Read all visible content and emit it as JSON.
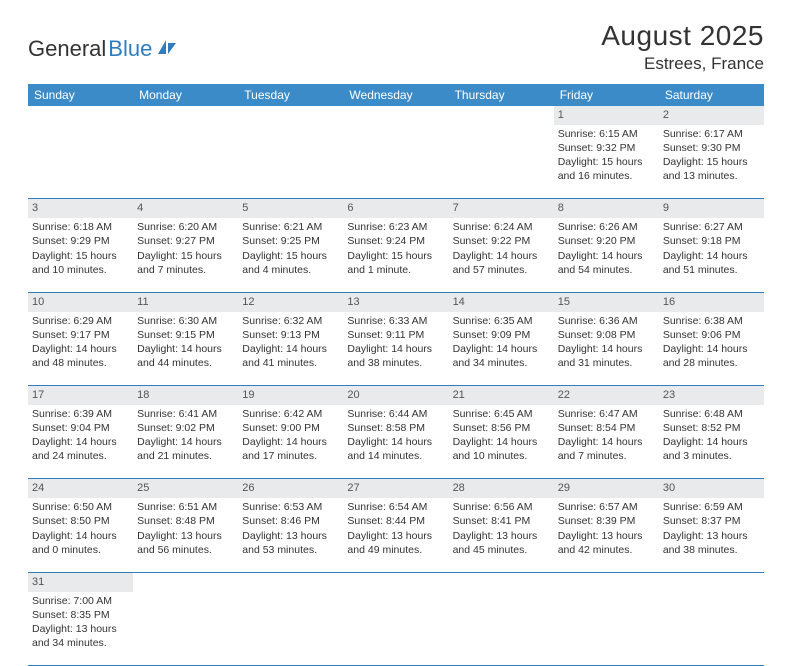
{
  "logo": {
    "text_dark": "General",
    "text_blue": "Blue"
  },
  "title": "August 2025",
  "location": "Estrees, France",
  "colors": {
    "header_bg": "#3b8bc9",
    "header_text": "#ffffff",
    "daynum_bg": "#e9eaeb",
    "row_divider": "#2f7dbf",
    "text": "#333333"
  },
  "weekdays": [
    "Sunday",
    "Monday",
    "Tuesday",
    "Wednesday",
    "Thursday",
    "Friday",
    "Saturday"
  ],
  "weeks": [
    [
      null,
      null,
      null,
      null,
      null,
      {
        "n": "1",
        "sr": "Sunrise: 6:15 AM",
        "ss": "Sunset: 9:32 PM",
        "dl1": "Daylight: 15 hours",
        "dl2": "and 16 minutes."
      },
      {
        "n": "2",
        "sr": "Sunrise: 6:17 AM",
        "ss": "Sunset: 9:30 PM",
        "dl1": "Daylight: 15 hours",
        "dl2": "and 13 minutes."
      }
    ],
    [
      {
        "n": "3",
        "sr": "Sunrise: 6:18 AM",
        "ss": "Sunset: 9:29 PM",
        "dl1": "Daylight: 15 hours",
        "dl2": "and 10 minutes."
      },
      {
        "n": "4",
        "sr": "Sunrise: 6:20 AM",
        "ss": "Sunset: 9:27 PM",
        "dl1": "Daylight: 15 hours",
        "dl2": "and 7 minutes."
      },
      {
        "n": "5",
        "sr": "Sunrise: 6:21 AM",
        "ss": "Sunset: 9:25 PM",
        "dl1": "Daylight: 15 hours",
        "dl2": "and 4 minutes."
      },
      {
        "n": "6",
        "sr": "Sunrise: 6:23 AM",
        "ss": "Sunset: 9:24 PM",
        "dl1": "Daylight: 15 hours",
        "dl2": "and 1 minute."
      },
      {
        "n": "7",
        "sr": "Sunrise: 6:24 AM",
        "ss": "Sunset: 9:22 PM",
        "dl1": "Daylight: 14 hours",
        "dl2": "and 57 minutes."
      },
      {
        "n": "8",
        "sr": "Sunrise: 6:26 AM",
        "ss": "Sunset: 9:20 PM",
        "dl1": "Daylight: 14 hours",
        "dl2": "and 54 minutes."
      },
      {
        "n": "9",
        "sr": "Sunrise: 6:27 AM",
        "ss": "Sunset: 9:18 PM",
        "dl1": "Daylight: 14 hours",
        "dl2": "and 51 minutes."
      }
    ],
    [
      {
        "n": "10",
        "sr": "Sunrise: 6:29 AM",
        "ss": "Sunset: 9:17 PM",
        "dl1": "Daylight: 14 hours",
        "dl2": "and 48 minutes."
      },
      {
        "n": "11",
        "sr": "Sunrise: 6:30 AM",
        "ss": "Sunset: 9:15 PM",
        "dl1": "Daylight: 14 hours",
        "dl2": "and 44 minutes."
      },
      {
        "n": "12",
        "sr": "Sunrise: 6:32 AM",
        "ss": "Sunset: 9:13 PM",
        "dl1": "Daylight: 14 hours",
        "dl2": "and 41 minutes."
      },
      {
        "n": "13",
        "sr": "Sunrise: 6:33 AM",
        "ss": "Sunset: 9:11 PM",
        "dl1": "Daylight: 14 hours",
        "dl2": "and 38 minutes."
      },
      {
        "n": "14",
        "sr": "Sunrise: 6:35 AM",
        "ss": "Sunset: 9:09 PM",
        "dl1": "Daylight: 14 hours",
        "dl2": "and 34 minutes."
      },
      {
        "n": "15",
        "sr": "Sunrise: 6:36 AM",
        "ss": "Sunset: 9:08 PM",
        "dl1": "Daylight: 14 hours",
        "dl2": "and 31 minutes."
      },
      {
        "n": "16",
        "sr": "Sunrise: 6:38 AM",
        "ss": "Sunset: 9:06 PM",
        "dl1": "Daylight: 14 hours",
        "dl2": "and 28 minutes."
      }
    ],
    [
      {
        "n": "17",
        "sr": "Sunrise: 6:39 AM",
        "ss": "Sunset: 9:04 PM",
        "dl1": "Daylight: 14 hours",
        "dl2": "and 24 minutes."
      },
      {
        "n": "18",
        "sr": "Sunrise: 6:41 AM",
        "ss": "Sunset: 9:02 PM",
        "dl1": "Daylight: 14 hours",
        "dl2": "and 21 minutes."
      },
      {
        "n": "19",
        "sr": "Sunrise: 6:42 AM",
        "ss": "Sunset: 9:00 PM",
        "dl1": "Daylight: 14 hours",
        "dl2": "and 17 minutes."
      },
      {
        "n": "20",
        "sr": "Sunrise: 6:44 AM",
        "ss": "Sunset: 8:58 PM",
        "dl1": "Daylight: 14 hours",
        "dl2": "and 14 minutes."
      },
      {
        "n": "21",
        "sr": "Sunrise: 6:45 AM",
        "ss": "Sunset: 8:56 PM",
        "dl1": "Daylight: 14 hours",
        "dl2": "and 10 minutes."
      },
      {
        "n": "22",
        "sr": "Sunrise: 6:47 AM",
        "ss": "Sunset: 8:54 PM",
        "dl1": "Daylight: 14 hours",
        "dl2": "and 7 minutes."
      },
      {
        "n": "23",
        "sr": "Sunrise: 6:48 AM",
        "ss": "Sunset: 8:52 PM",
        "dl1": "Daylight: 14 hours",
        "dl2": "and 3 minutes."
      }
    ],
    [
      {
        "n": "24",
        "sr": "Sunrise: 6:50 AM",
        "ss": "Sunset: 8:50 PM",
        "dl1": "Daylight: 14 hours",
        "dl2": "and 0 minutes."
      },
      {
        "n": "25",
        "sr": "Sunrise: 6:51 AM",
        "ss": "Sunset: 8:48 PM",
        "dl1": "Daylight: 13 hours",
        "dl2": "and 56 minutes."
      },
      {
        "n": "26",
        "sr": "Sunrise: 6:53 AM",
        "ss": "Sunset: 8:46 PM",
        "dl1": "Daylight: 13 hours",
        "dl2": "and 53 minutes."
      },
      {
        "n": "27",
        "sr": "Sunrise: 6:54 AM",
        "ss": "Sunset: 8:44 PM",
        "dl1": "Daylight: 13 hours",
        "dl2": "and 49 minutes."
      },
      {
        "n": "28",
        "sr": "Sunrise: 6:56 AM",
        "ss": "Sunset: 8:41 PM",
        "dl1": "Daylight: 13 hours",
        "dl2": "and 45 minutes."
      },
      {
        "n": "29",
        "sr": "Sunrise: 6:57 AM",
        "ss": "Sunset: 8:39 PM",
        "dl1": "Daylight: 13 hours",
        "dl2": "and 42 minutes."
      },
      {
        "n": "30",
        "sr": "Sunrise: 6:59 AM",
        "ss": "Sunset: 8:37 PM",
        "dl1": "Daylight: 13 hours",
        "dl2": "and 38 minutes."
      }
    ],
    [
      {
        "n": "31",
        "sr": "Sunrise: 7:00 AM",
        "ss": "Sunset: 8:35 PM",
        "dl1": "Daylight: 13 hours",
        "dl2": "and 34 minutes."
      },
      null,
      null,
      null,
      null,
      null,
      null
    ]
  ]
}
